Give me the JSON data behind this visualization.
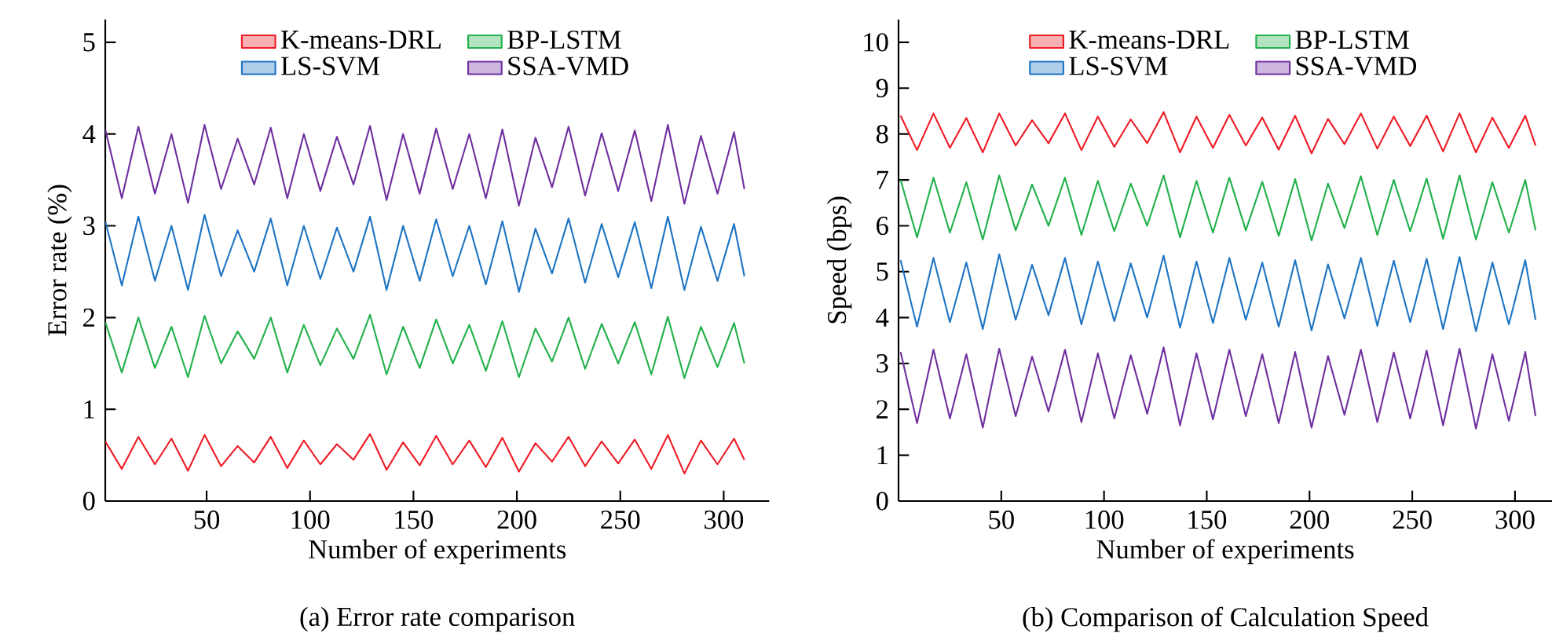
{
  "chart_data": [
    {
      "type": "line",
      "title": "(a) Error rate comparison",
      "xlabel": "Number of experiments",
      "ylabel": "Error rate (%)",
      "x": [
        1,
        9,
        17,
        25,
        33,
        41,
        49,
        57,
        65,
        73,
        81,
        89,
        97,
        105,
        113,
        121,
        129,
        137,
        145,
        153,
        161,
        169,
        177,
        185,
        193,
        201,
        209,
        217,
        225,
        233,
        241,
        249,
        257,
        265,
        273,
        281,
        289,
        297,
        305,
        310
      ],
      "xlim": [
        1,
        322
      ],
      "ylim": [
        0,
        5.25
      ],
      "xticks": [
        50,
        100,
        150,
        200,
        250,
        300
      ],
      "yticks": [
        0,
        1,
        2,
        3,
        4,
        5
      ],
      "legend": "top",
      "grid": false,
      "marker": "none",
      "line_style": "solid",
      "series": [
        {
          "name": "K-means-DRL",
          "color": "#ee1c25",
          "values": [
            0.65,
            0.35,
            0.7,
            0.4,
            0.68,
            0.33,
            0.72,
            0.38,
            0.6,
            0.42,
            0.7,
            0.36,
            0.66,
            0.4,
            0.62,
            0.45,
            0.73,
            0.34,
            0.64,
            0.39,
            0.71,
            0.4,
            0.66,
            0.37,
            0.69,
            0.32,
            0.63,
            0.43,
            0.7,
            0.38,
            0.65,
            0.41,
            0.67,
            0.35,
            0.72,
            0.3,
            0.66,
            0.4,
            0.68,
            0.45
          ]
        },
        {
          "name": "BP-LSTM",
          "color": "#22b14c",
          "values": [
            1.95,
            1.4,
            2.0,
            1.45,
            1.9,
            1.35,
            2.02,
            1.5,
            1.85,
            1.55,
            2.0,
            1.4,
            1.92,
            1.48,
            1.88,
            1.55,
            2.03,
            1.38,
            1.9,
            1.45,
            1.98,
            1.5,
            1.92,
            1.42,
            1.96,
            1.35,
            1.88,
            1.52,
            2.0,
            1.44,
            1.93,
            1.5,
            1.95,
            1.38,
            2.01,
            1.34,
            1.9,
            1.46,
            1.94,
            1.5
          ]
        },
        {
          "name": "LS-SVM",
          "color": "#1f75c4",
          "values": [
            3.05,
            2.35,
            3.1,
            2.4,
            3.0,
            2.3,
            3.12,
            2.45,
            2.95,
            2.5,
            3.08,
            2.35,
            3.0,
            2.42,
            2.98,
            2.5,
            3.1,
            2.3,
            3.0,
            2.4,
            3.07,
            2.45,
            3.0,
            2.36,
            3.05,
            2.28,
            2.97,
            2.48,
            3.08,
            2.38,
            3.02,
            2.44,
            3.04,
            2.32,
            3.1,
            2.3,
            2.99,
            2.4,
            3.02,
            2.45
          ]
        },
        {
          "name": "SSA-VMD",
          "color": "#7030a0",
          "values": [
            4.05,
            3.3,
            4.08,
            3.35,
            4.0,
            3.25,
            4.1,
            3.4,
            3.95,
            3.45,
            4.07,
            3.3,
            4.0,
            3.38,
            3.97,
            3.45,
            4.09,
            3.28,
            4.0,
            3.35,
            4.06,
            3.4,
            4.0,
            3.3,
            4.05,
            3.22,
            3.96,
            3.42,
            4.08,
            3.33,
            4.01,
            3.38,
            4.04,
            3.27,
            4.1,
            3.24,
            3.98,
            3.35,
            4.02,
            3.4
          ]
        }
      ]
    },
    {
      "type": "line",
      "title": "(b) Comparison of Calculation Speed",
      "xlabel": "Number of experiments",
      "ylabel": "Speed (bps)",
      "x": [
        1,
        9,
        17,
        25,
        33,
        41,
        49,
        57,
        65,
        73,
        81,
        89,
        97,
        105,
        113,
        121,
        129,
        137,
        145,
        153,
        161,
        169,
        177,
        185,
        193,
        201,
        209,
        217,
        225,
        233,
        241,
        249,
        257,
        265,
        273,
        281,
        289,
        297,
        305,
        310
      ],
      "xlim": [
        0,
        318
      ],
      "ylim": [
        0,
        10.5
      ],
      "xticks": [
        50,
        100,
        150,
        200,
        250,
        300
      ],
      "yticks": [
        0,
        1,
        2,
        3,
        4,
        5,
        6,
        7,
        8,
        9,
        10
      ],
      "legend": "top",
      "grid": false,
      "marker": "none",
      "line_style": "solid",
      "series": [
        {
          "name": "K-means-DRL",
          "color": "#ee1c25",
          "values": [
            8.4,
            7.65,
            8.45,
            7.7,
            8.35,
            7.6,
            8.45,
            7.75,
            8.3,
            7.8,
            8.45,
            7.65,
            8.38,
            7.72,
            8.32,
            7.8,
            8.48,
            7.6,
            8.38,
            7.7,
            8.42,
            7.75,
            8.36,
            7.66,
            8.4,
            7.58,
            8.33,
            7.78,
            8.45,
            7.68,
            8.38,
            7.74,
            8.4,
            7.62,
            8.45,
            7.6,
            8.36,
            7.7,
            8.4,
            7.75
          ]
        },
        {
          "name": "BP-LSTM",
          "color": "#22b14c",
          "values": [
            7.0,
            5.75,
            7.05,
            5.85,
            6.95,
            5.7,
            7.1,
            5.9,
            6.9,
            6.0,
            7.05,
            5.8,
            6.98,
            5.88,
            6.92,
            6.0,
            7.1,
            5.75,
            6.98,
            5.85,
            7.05,
            5.9,
            6.96,
            5.78,
            7.02,
            5.68,
            6.92,
            5.95,
            7.08,
            5.8,
            7.0,
            5.88,
            7.03,
            5.72,
            7.1,
            5.7,
            6.95,
            5.85,
            7.0,
            5.9
          ]
        },
        {
          "name": "LS-SVM",
          "color": "#1f75c4",
          "values": [
            5.25,
            3.8,
            5.3,
            3.9,
            5.2,
            3.75,
            5.38,
            3.95,
            5.15,
            4.05,
            5.3,
            3.85,
            5.22,
            3.92,
            5.18,
            4.0,
            5.35,
            3.78,
            5.22,
            3.88,
            5.3,
            3.95,
            5.2,
            3.8,
            5.25,
            3.72,
            5.16,
            3.98,
            5.3,
            3.82,
            5.24,
            3.9,
            5.28,
            3.75,
            5.32,
            3.7,
            5.2,
            3.85,
            5.25,
            3.95
          ]
        },
        {
          "name": "SSA-VMD",
          "color": "#7030a0",
          "values": [
            3.25,
            1.7,
            3.3,
            1.8,
            3.2,
            1.6,
            3.32,
            1.85,
            3.15,
            1.95,
            3.3,
            1.72,
            3.22,
            1.8,
            3.18,
            1.9,
            3.35,
            1.65,
            3.22,
            1.78,
            3.3,
            1.85,
            3.2,
            1.7,
            3.25,
            1.6,
            3.16,
            1.88,
            3.3,
            1.72,
            3.24,
            1.8,
            3.28,
            1.65,
            3.32,
            1.58,
            3.2,
            1.75,
            3.25,
            1.85
          ]
        }
      ]
    }
  ]
}
